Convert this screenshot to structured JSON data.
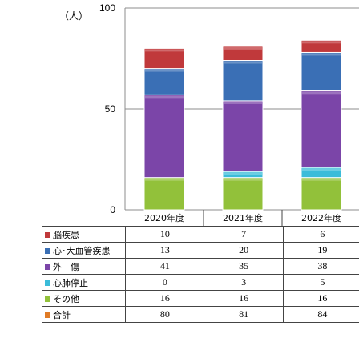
{
  "unit_label": "（人）",
  "colors": {
    "脳疾患": "#c0393b",
    "心・大血管疾患": "#3a6fb5",
    "外傷": "#7b45a8",
    "心肺停止": "#3bbcd9",
    "その他": "#92c13a",
    "合計": "#e07b26"
  },
  "chart_data": {
    "type": "bar",
    "stacked": true,
    "categories": [
      "2020年度",
      "2021年度",
      "2022年度"
    ],
    "series": [
      {
        "name": "その他",
        "values": [
          16,
          16,
          16
        ]
      },
      {
        "name": "心肺停止",
        "values": [
          0,
          3,
          5
        ]
      },
      {
        "name": "外傷",
        "values": [
          41,
          35,
          38
        ]
      },
      {
        "name": "心・大血管疾患",
        "values": [
          13,
          20,
          19
        ]
      },
      {
        "name": "脳疾患",
        "values": [
          10,
          7,
          6
        ]
      }
    ],
    "ylim": [
      0,
      100
    ],
    "yticks": [
      "0",
      "50",
      "100"
    ],
    "grid": true,
    "table": {
      "rows": [
        {
          "label": "脳疾患",
          "key": "脳疾患",
          "values": [
            "10",
            "7",
            "6"
          ]
        },
        {
          "label": "心･大血管疾患",
          "key": "心・大血管疾患",
          "values": [
            "13",
            "20",
            "19"
          ]
        },
        {
          "label": "外　傷",
          "key": "外傷",
          "values": [
            "41",
            "35",
            "38"
          ]
        },
        {
          "label": "心肺停止",
          "key": "心肺停止",
          "values": [
            "0",
            "3",
            "5"
          ]
        },
        {
          "label": "その他",
          "key": "その他",
          "values": [
            "16",
            "16",
            "16"
          ]
        },
        {
          "label": "合計",
          "key": "合計",
          "values": [
            "80",
            "81",
            "84"
          ]
        }
      ]
    }
  }
}
